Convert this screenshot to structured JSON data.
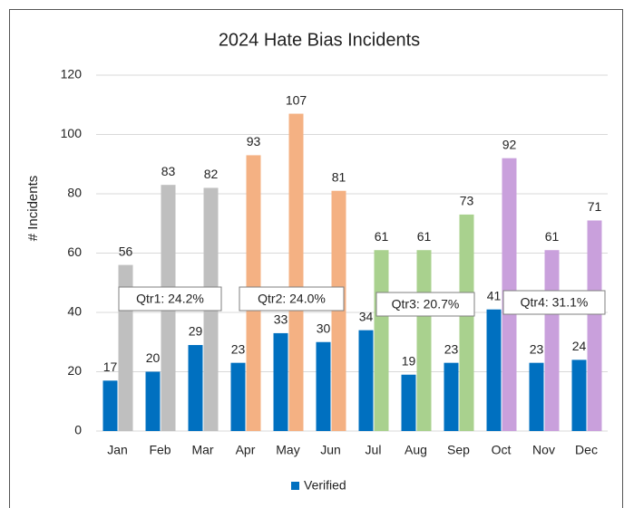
{
  "chart_data": {
    "type": "bar",
    "title": "2024 Hate Bias Incidents",
    "y_label": "# Incidents",
    "categories": [
      "Jan",
      "Feb",
      "Mar",
      "Apr",
      "May",
      "Jun",
      "Jul",
      "Aug",
      "Sep",
      "Oct",
      "Nov",
      "Dec"
    ],
    "series": [
      {
        "name": "Verified",
        "color": "#0070c0",
        "values": [
          17,
          20,
          29,
          23,
          33,
          30,
          34,
          19,
          23,
          41,
          23,
          24
        ]
      },
      {
        "colors": [
          "#bfbfbf",
          "#bfbfbf",
          "#bfbfbf",
          "#f4b183",
          "#f4b183",
          "#f4b183",
          "#a9d18e",
          "#a9d18e",
          "#a9d18e",
          "#c9a0dc",
          "#c9a0dc",
          "#c9a0dc"
        ],
        "values": [
          56,
          83,
          82,
          93,
          107,
          81,
          61,
          61,
          73,
          92,
          61,
          71
        ]
      }
    ],
    "annotations": [
      "Qtr1: 24.2%",
      "Qtr2: 24.0%",
      "Qtr3: 20.7%",
      "Qtr4: 31.1%"
    ],
    "ylim": [
      0,
      120
    ],
    "yticks": [
      0,
      20,
      40,
      60,
      80,
      100,
      120
    ],
    "grid": true,
    "legend": "bottom"
  }
}
